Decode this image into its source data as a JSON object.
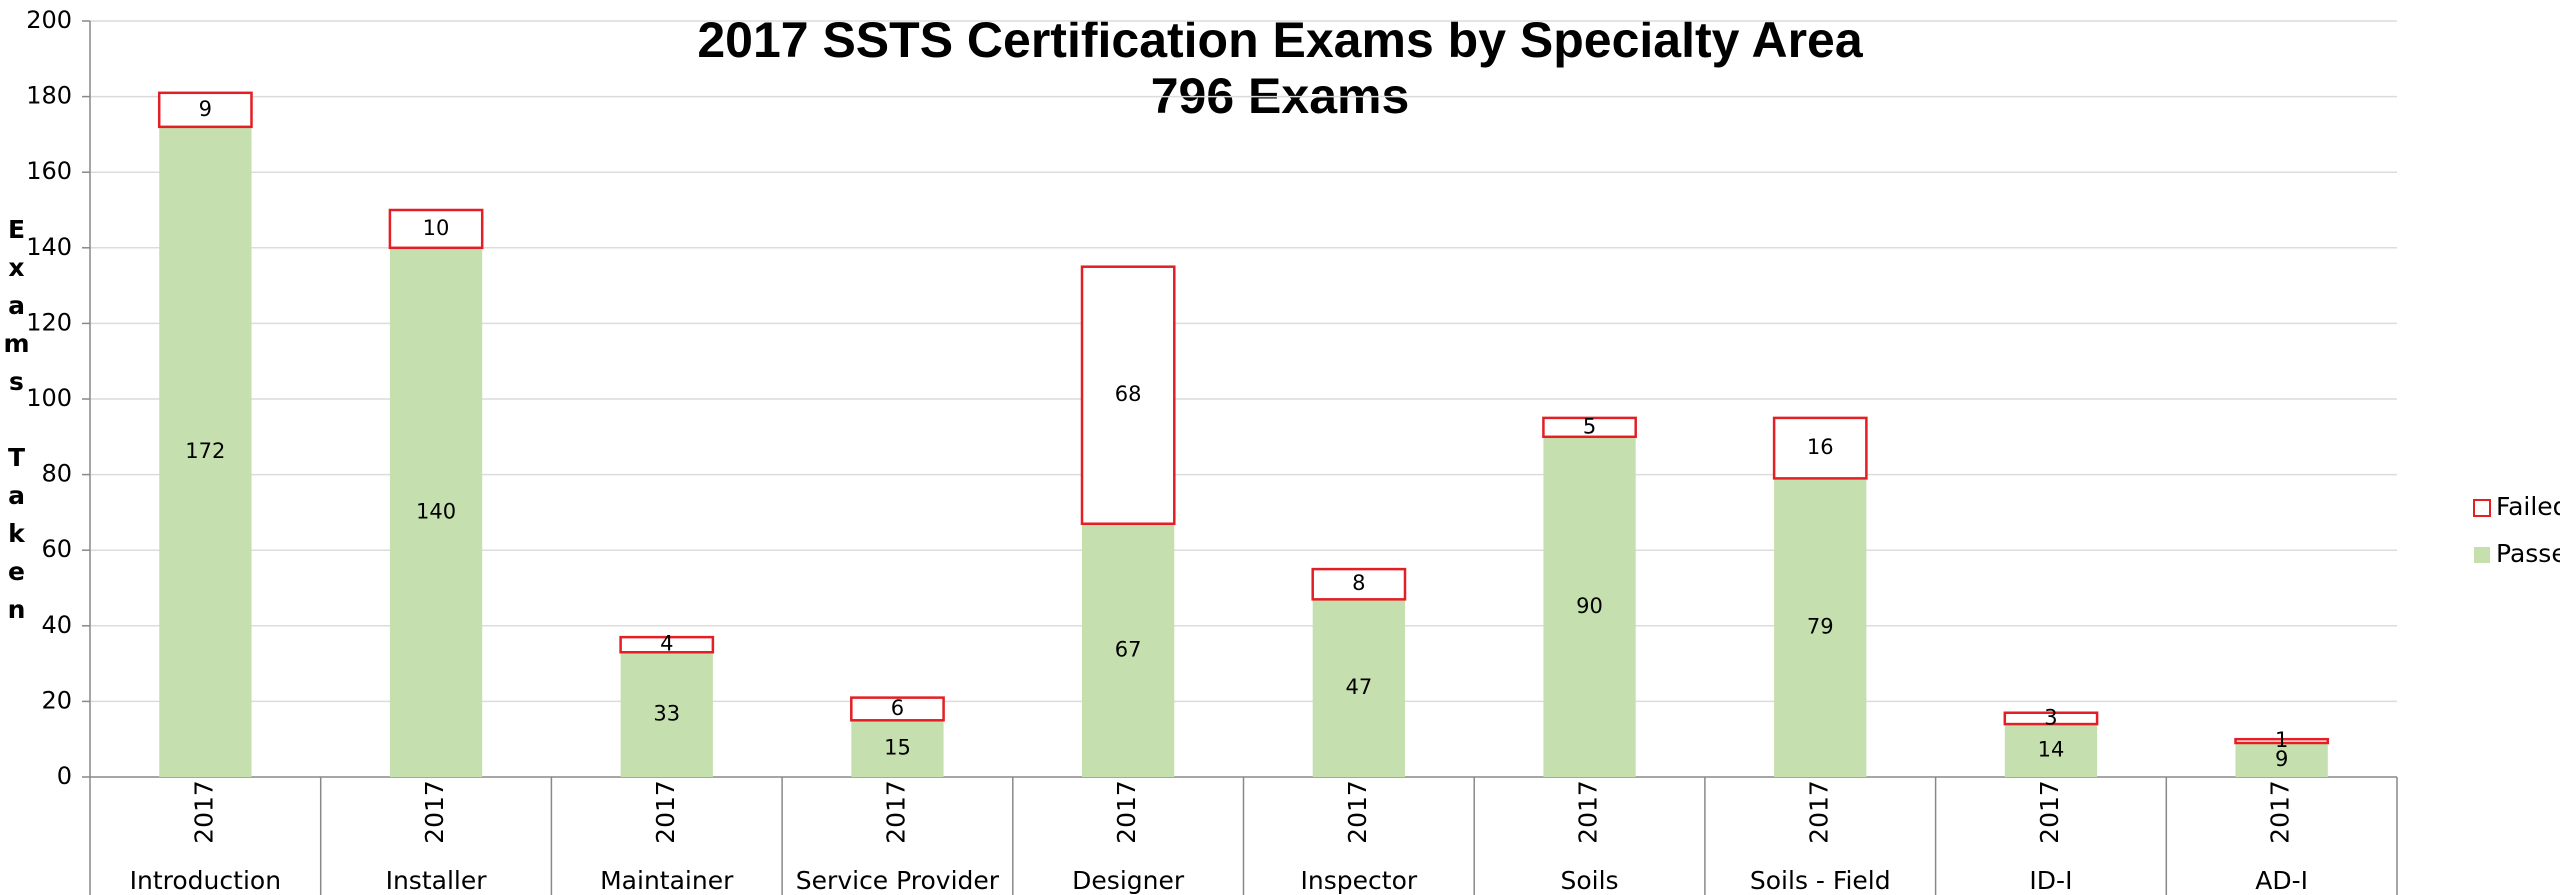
{
  "chart_data": {
    "type": "stacked_bar",
    "title": [
      "2017 SSTS Certification Exams by Specialty Area",
      "796 Exams"
    ],
    "y_label": "Exams Taken",
    "categories": [
      "Introduction",
      "Installer",
      "Maintainer",
      "Service Provider",
      "Designer",
      "Inspector",
      "Soils",
      "Soils - Field",
      "ID-I",
      "AD-I"
    ],
    "category_years": [
      "2017",
      "2017",
      "2017",
      "2017",
      "2017",
      "2017",
      "2017",
      "2017",
      "2017",
      "2017"
    ],
    "series": [
      {
        "name": "Passed",
        "color": "#c6dfae",
        "values": [
          172,
          140,
          33,
          15,
          67,
          47,
          90,
          79,
          14,
          9
        ]
      },
      {
        "name": "Failed",
        "color": "#e31e24",
        "values": [
          9,
          10,
          4,
          6,
          68,
          8,
          5,
          16,
          3,
          1
        ]
      }
    ],
    "ylim": [
      0,
      200
    ],
    "yticks": [
      0,
      20,
      40,
      60,
      80,
      100,
      120,
      140,
      160,
      180,
      200
    ],
    "grid": true,
    "legend": "right"
  }
}
